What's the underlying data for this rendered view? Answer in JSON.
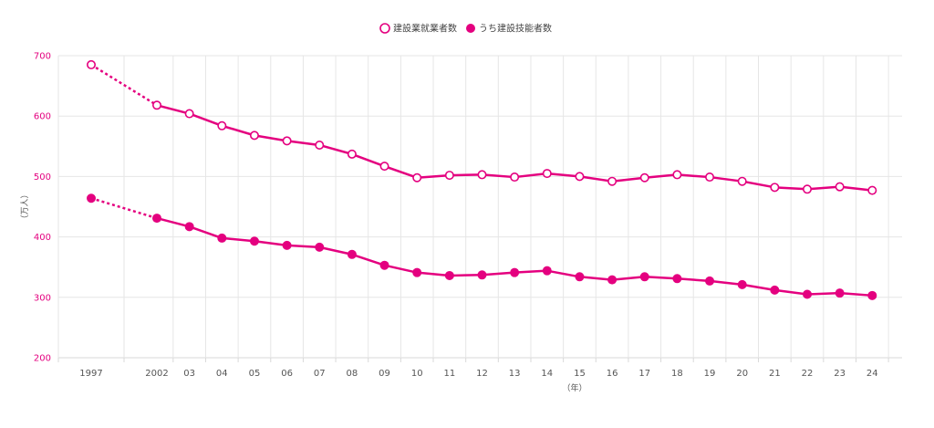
{
  "chart_data": {
    "type": "line",
    "colors": {
      "series": "#e4007f",
      "grid": "#e6e6e6",
      "axis_text": "#555555"
    },
    "x_labels": [
      "1997",
      "2002",
      "03",
      "04",
      "05",
      "06",
      "07",
      "08",
      "09",
      "10",
      "11",
      "12",
      "13",
      "14",
      "15",
      "16",
      "17",
      "18",
      "19",
      "20",
      "21",
      "22",
      "23",
      "24"
    ],
    "x": [
      1997,
      2002,
      2003,
      2004,
      2005,
      2006,
      2007,
      2008,
      2009,
      2010,
      2011,
      2012,
      2013,
      2014,
      2015,
      2016,
      2017,
      2018,
      2019,
      2020,
      2021,
      2022,
      2023,
      2024
    ],
    "xlabel": "（年）",
    "ylabel": "（万人）",
    "ylim": [
      200,
      700
    ],
    "yticks": [
      200,
      300,
      400,
      500,
      600,
      700
    ],
    "grid": true,
    "legend_position": "top-center",
    "series": [
      {
        "name": "建設業就業者数",
        "marker": "hollow-circle",
        "dashed_first_segment": true,
        "values": [
          685,
          618,
          604,
          584,
          568,
          559,
          552,
          537,
          517,
          498,
          502,
          503,
          499,
          505,
          500,
          492,
          498,
          503,
          499,
          492,
          482,
          479,
          483,
          477
        ]
      },
      {
        "name": "うち建設技能者数",
        "marker": "filled-circle",
        "dashed_first_segment": true,
        "values": [
          464,
          431,
          417,
          398,
          393,
          386,
          383,
          371,
          353,
          341,
          336,
          337,
          341,
          344,
          334,
          329,
          334,
          331,
          327,
          321,
          312,
          305,
          307,
          303
        ]
      }
    ]
  }
}
